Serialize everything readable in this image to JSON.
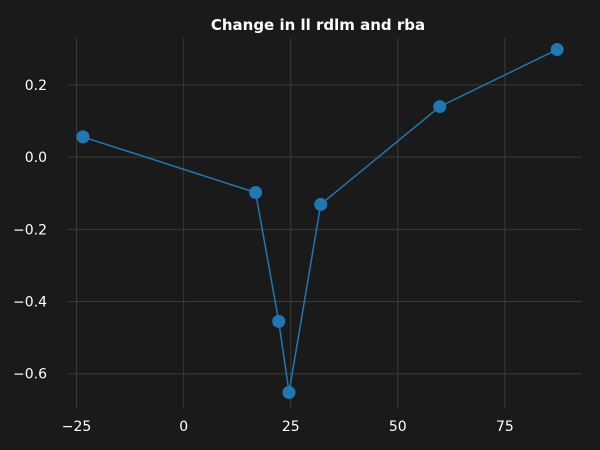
{
  "chart_data": {
    "type": "line",
    "title": "Change in ll rdlm and rba",
    "xlabel": "",
    "ylabel": "",
    "x": [
      -23.5,
      16.8,
      22.2,
      24.6,
      32.0,
      59.8,
      87.2
    ],
    "y": [
      0.056,
      -0.098,
      -0.455,
      -0.652,
      -0.131,
      0.14,
      0.298
    ],
    "xlim": [
      -27,
      93
    ],
    "ylim": [
      -0.695,
      0.33
    ],
    "x_ticks": [
      -25,
      0,
      25,
      50,
      75
    ],
    "x_tick_labels": [
      "−25",
      "0",
      "25",
      "50",
      "75"
    ],
    "y_ticks": [
      -0.6,
      -0.4,
      -0.2,
      0.0,
      0.2
    ],
    "y_tick_labels": [
      "−0.6",
      "−0.4",
      "−0.2",
      "0.0",
      "0.2"
    ],
    "grid": true,
    "colors": {
      "background": "#1a1a1a",
      "grid": "#3a3a3a",
      "series": "#1f77b4",
      "text": "#ffffff"
    }
  }
}
